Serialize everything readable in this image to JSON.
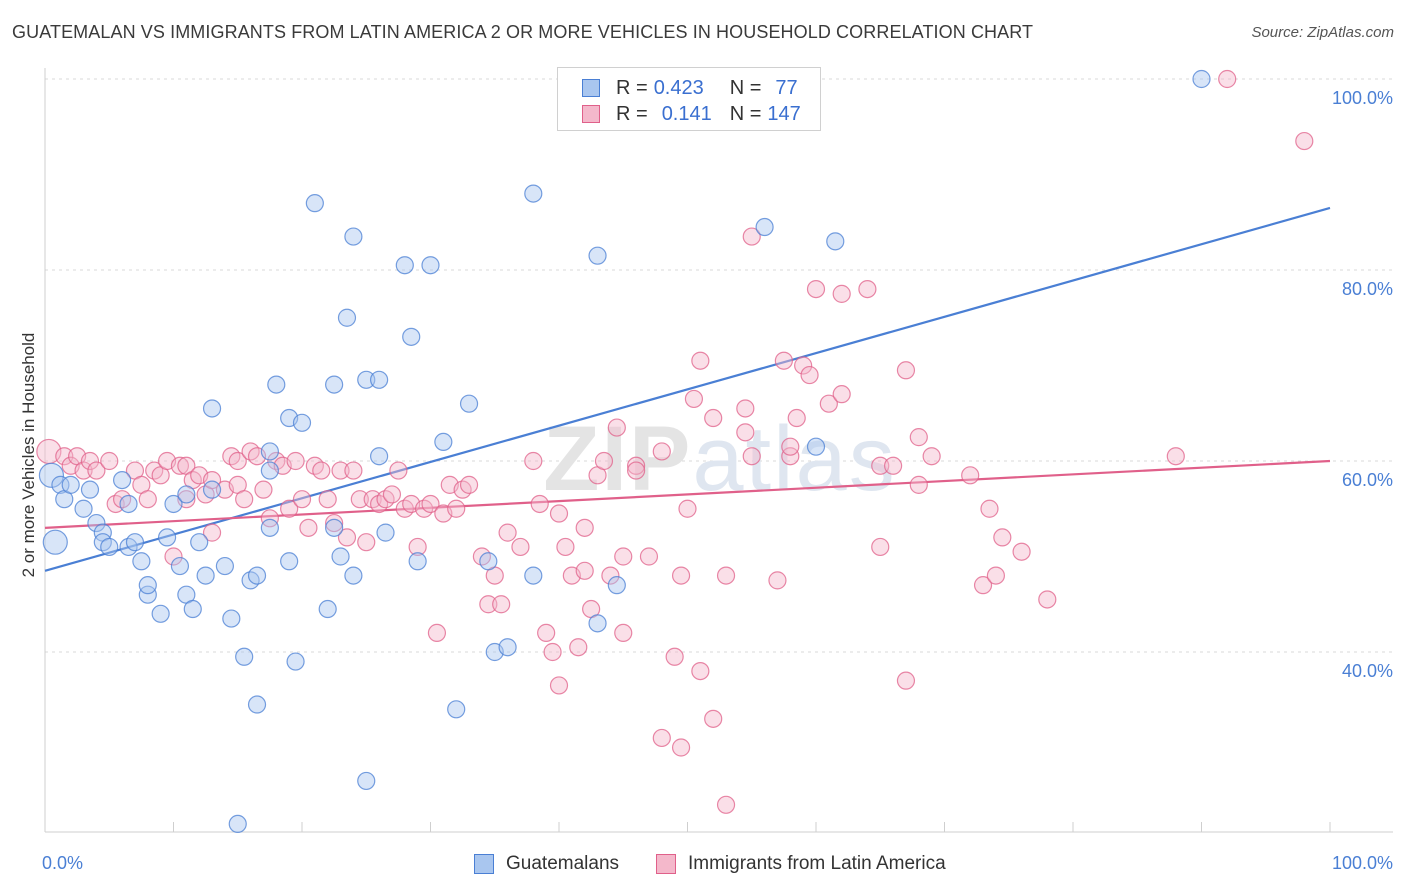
{
  "title": "GUATEMALAN VS IMMIGRANTS FROM LATIN AMERICA 2 OR MORE VEHICLES IN HOUSEHOLD CORRELATION CHART",
  "source": "Source: ZipAtlas.com",
  "watermark": "ZIPatlas",
  "colors": {
    "blue": "#4a7fd4",
    "blue_fill": "#a9c6ef",
    "pink": "#e0608a",
    "pink_fill": "#f4b8cb",
    "grid": "#d8d8d8"
  },
  "legend": {
    "rows": [
      {
        "r_label": "R = ",
        "r_value": "0.423",
        "n_label": "N = ",
        "n_value": "77"
      },
      {
        "r_label": "R = ",
        "r_value": "0.141",
        "n_label": "N = ",
        "n_value": "147"
      }
    ]
  },
  "bottom_legend": [
    "Guatemalans",
    "Immigrants from Latin America"
  ],
  "chart_data": {
    "type": "scatter",
    "title": "GUATEMALAN VS IMMIGRANTS FROM LATIN AMERICA 2 OR MORE VEHICLES IN HOUSEHOLD CORRELATION CHART",
    "xlabel": "",
    "ylabel": "2 or more Vehicles in Household",
    "xlim": [
      0,
      100
    ],
    "ylim": [
      20,
      102
    ],
    "x_tick_labels": [
      "0.0%",
      "100.0%"
    ],
    "y_tick_labels": [
      "40.0%",
      "60.0%",
      "80.0%",
      "100.0%"
    ],
    "y_ticks": [
      40,
      60,
      80,
      100
    ],
    "grid": true,
    "legend_position": "top-center",
    "series": [
      {
        "name": "Guatemalans",
        "color": "#4a7fd4",
        "trend": {
          "x": [
            0,
            100
          ],
          "y": [
            48.5,
            86.5
          ]
        },
        "points": [
          [
            0.5,
            58.5
          ],
          [
            0.8,
            51.5
          ],
          [
            1.2,
            57.5
          ],
          [
            1.5,
            56
          ],
          [
            2,
            57.5
          ],
          [
            3,
            55
          ],
          [
            3.5,
            57
          ],
          [
            4,
            53.5
          ],
          [
            4.5,
            52.5
          ],
          [
            4.5,
            51.5
          ],
          [
            5,
            51
          ],
          [
            6,
            58
          ],
          [
            6.5,
            55.5
          ],
          [
            6.5,
            51
          ],
          [
            7,
            51.5
          ],
          [
            7.5,
            49.5
          ],
          [
            8,
            46
          ],
          [
            8,
            47
          ],
          [
            9,
            44
          ],
          [
            9.5,
            52
          ],
          [
            10,
            55.5
          ],
          [
            10.5,
            49
          ],
          [
            11,
            56.5
          ],
          [
            11,
            46
          ],
          [
            11.5,
            44.5
          ],
          [
            12,
            51.5
          ],
          [
            12.5,
            48
          ],
          [
            13,
            65.5
          ],
          [
            13,
            57
          ],
          [
            14,
            49
          ],
          [
            14.5,
            43.5
          ],
          [
            15,
            22
          ],
          [
            15.5,
            39.5
          ],
          [
            16,
            47.5
          ],
          [
            16.5,
            48
          ],
          [
            16.5,
            34.5
          ],
          [
            17.5,
            53
          ],
          [
            17.5,
            61
          ],
          [
            17.5,
            59
          ],
          [
            18,
            68
          ],
          [
            19,
            64.5
          ],
          [
            19,
            49.5
          ],
          [
            19.5,
            39
          ],
          [
            20,
            64
          ],
          [
            21,
            87
          ],
          [
            22,
            44.5
          ],
          [
            22.5,
            68
          ],
          [
            22.5,
            53
          ],
          [
            23,
            50
          ],
          [
            23.5,
            75
          ],
          [
            24,
            48
          ],
          [
            24,
            83.5
          ],
          [
            25,
            68.5
          ],
          [
            25,
            26.5
          ],
          [
            26,
            68.5
          ],
          [
            26,
            60.5
          ],
          [
            26.5,
            52.5
          ],
          [
            28,
            80.5
          ],
          [
            28.5,
            73
          ],
          [
            29,
            49.5
          ],
          [
            30,
            80.5
          ],
          [
            31,
            62
          ],
          [
            32,
            34
          ],
          [
            33,
            66
          ],
          [
            34.5,
            49.5
          ],
          [
            35,
            40
          ],
          [
            36,
            40.5
          ],
          [
            38,
            48
          ],
          [
            38,
            88
          ],
          [
            43,
            81.5
          ],
          [
            43,
            43
          ],
          [
            44.5,
            47
          ],
          [
            56,
            84.5
          ],
          [
            60,
            61.5
          ],
          [
            61.5,
            83
          ],
          [
            90,
            100
          ]
        ]
      },
      {
        "name": "Immigrants from Latin America",
        "color": "#e0608a",
        "trend": {
          "x": [
            0,
            100
          ],
          "y": [
            53,
            60
          ]
        },
        "points": [
          [
            0.3,
            61
          ],
          [
            1.5,
            60.5
          ],
          [
            2,
            59.5
          ],
          [
            2.5,
            60.5
          ],
          [
            3,
            59
          ],
          [
            3.5,
            60
          ],
          [
            4,
            59
          ],
          [
            5,
            60
          ],
          [
            5.5,
            55.5
          ],
          [
            6,
            56
          ],
          [
            7,
            59
          ],
          [
            7.5,
            57.5
          ],
          [
            8,
            56
          ],
          [
            8.5,
            59
          ],
          [
            9,
            58.5
          ],
          [
            9.5,
            60
          ],
          [
            10,
            50
          ],
          [
            10.5,
            59.5
          ],
          [
            11,
            56
          ],
          [
            11,
            59.5
          ],
          [
            11.5,
            58
          ],
          [
            12,
            58.5
          ],
          [
            12.5,
            56.5
          ],
          [
            13,
            52.5
          ],
          [
            13,
            58
          ],
          [
            14,
            57
          ],
          [
            14.5,
            60.5
          ],
          [
            15,
            60
          ],
          [
            15,
            57.5
          ],
          [
            15.5,
            56
          ],
          [
            16,
            61
          ],
          [
            16.5,
            60.5
          ],
          [
            17,
            57
          ],
          [
            17.5,
            54
          ],
          [
            18,
            60
          ],
          [
            18.5,
            59.5
          ],
          [
            19,
            55
          ],
          [
            19.5,
            60
          ],
          [
            20,
            56
          ],
          [
            20.5,
            53
          ],
          [
            21,
            59.5
          ],
          [
            21.5,
            59
          ],
          [
            22,
            56
          ],
          [
            22.5,
            53.5
          ],
          [
            23,
            59
          ],
          [
            23.5,
            52
          ],
          [
            24,
            59
          ],
          [
            24.5,
            56
          ],
          [
            25,
            51.5
          ],
          [
            25.5,
            56
          ],
          [
            26,
            55.5
          ],
          [
            26.5,
            56
          ],
          [
            27,
            56.5
          ],
          [
            27.5,
            59
          ],
          [
            28,
            55
          ],
          [
            28.5,
            55.5
          ],
          [
            29,
            51
          ],
          [
            29.5,
            55
          ],
          [
            30,
            55.5
          ],
          [
            30.5,
            42
          ],
          [
            31,
            54.5
          ],
          [
            31.5,
            57.5
          ],
          [
            32,
            55
          ],
          [
            32.5,
            57
          ],
          [
            33,
            57.5
          ],
          [
            34,
            50
          ],
          [
            34.5,
            45
          ],
          [
            35,
            48
          ],
          [
            35.5,
            45
          ],
          [
            36,
            52.5
          ],
          [
            37,
            51
          ],
          [
            38,
            60
          ],
          [
            38.5,
            55.5
          ],
          [
            39,
            42
          ],
          [
            39.5,
            40
          ],
          [
            40,
            54.5
          ],
          [
            40,
            36.5
          ],
          [
            40.5,
            51
          ],
          [
            41,
            48
          ],
          [
            41.5,
            40.5
          ],
          [
            42,
            48.5
          ],
          [
            42,
            53
          ],
          [
            42.5,
            44.5
          ],
          [
            43,
            58.5
          ],
          [
            43.5,
            60
          ],
          [
            44,
            48
          ],
          [
            44.5,
            63.5
          ],
          [
            45,
            50
          ],
          [
            45,
            42
          ],
          [
            46,
            59.5
          ],
          [
            46,
            59
          ],
          [
            47,
            50
          ],
          [
            48,
            61
          ],
          [
            48,
            31
          ],
          [
            49,
            39.5
          ],
          [
            49.5,
            48
          ],
          [
            49.5,
            30
          ],
          [
            50,
            55
          ],
          [
            50.5,
            66.5
          ],
          [
            51,
            70.5
          ],
          [
            51,
            38
          ],
          [
            52,
            64.5
          ],
          [
            52,
            33
          ],
          [
            53,
            48
          ],
          [
            53,
            24
          ],
          [
            54.5,
            63
          ],
          [
            54.5,
            65.5
          ],
          [
            55,
            60.5
          ],
          [
            55,
            83.5
          ],
          [
            57,
            47.5
          ],
          [
            57.5,
            70.5
          ],
          [
            58,
            60.5
          ],
          [
            58,
            61.5
          ],
          [
            58.5,
            64.5
          ],
          [
            59,
            70
          ],
          [
            59.5,
            69
          ],
          [
            60,
            78
          ],
          [
            61,
            66
          ],
          [
            62,
            77.5
          ],
          [
            62,
            67
          ],
          [
            64,
            78
          ],
          [
            65,
            59.5
          ],
          [
            65,
            51
          ],
          [
            66,
            59.5
          ],
          [
            67,
            69.5
          ],
          [
            67,
            37
          ],
          [
            68,
            62.5
          ],
          [
            68,
            57.5
          ],
          [
            69,
            60.5
          ],
          [
            72,
            58.5
          ],
          [
            73,
            47
          ],
          [
            73.5,
            55
          ],
          [
            74,
            48
          ],
          [
            74.5,
            52
          ],
          [
            76,
            50.5
          ],
          [
            78,
            45.5
          ],
          [
            88,
            60.5
          ],
          [
            92,
            100
          ],
          [
            98,
            93.5
          ]
        ]
      }
    ]
  }
}
